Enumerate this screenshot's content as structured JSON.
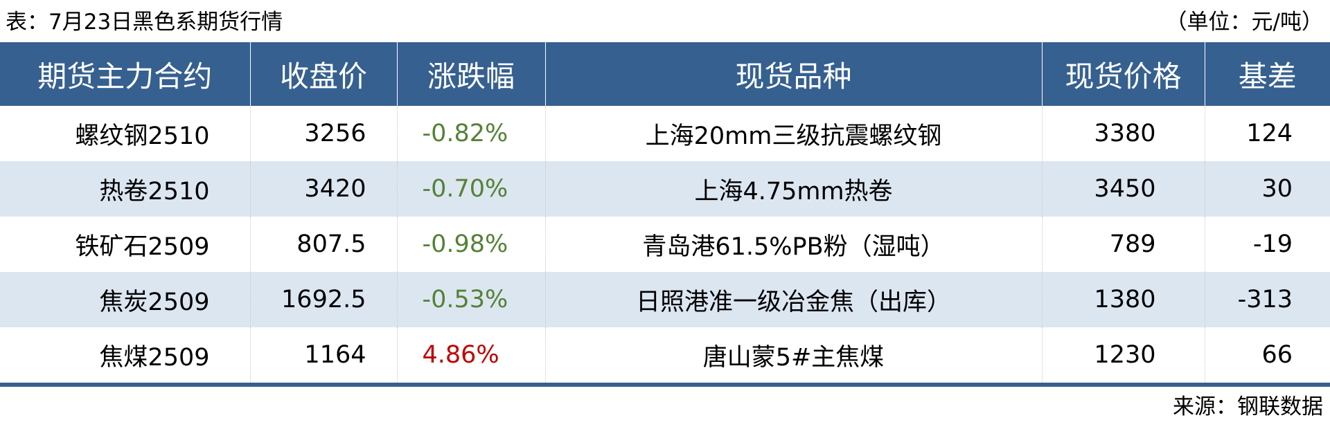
{
  "title": "表：7月23日黑色系期货行情",
  "unit": "（单位：元/吨）",
  "columns": [
    "期货主力合约",
    "收盘价",
    "涨跌幅",
    "现货品种",
    "现货价格",
    "基差"
  ],
  "rows": [
    [
      "螺纹钢2510",
      "3256",
      "-0.82%",
      "上海20mm三级抗震螺纹钢",
      "3380",
      "124"
    ],
    [
      "热卷2510",
      "3420",
      "-0.70%",
      "上海4.75mm热卷",
      "3450",
      "30"
    ],
    [
      "铁矿石2509",
      "807.5",
      "-0.98%",
      "青岛港61.5%PB粉（湿吨）",
      "789",
      "-19"
    ],
    [
      "焦炭2509",
      "1692.5",
      "-0.53%",
      "日照港准一级冶金焦（出库）",
      "1380",
      "-313"
    ],
    [
      "焦煤2509",
      "1164",
      "4.86%",
      "唐山蒙5#主焦煤",
      "1230",
      "66"
    ]
  ],
  "source": "来源：钢联数据",
  "colors": {
    "header": "#36608F",
    "alt_row": "#DCE6F1",
    "down": "#548235",
    "up": "#C00000"
  }
}
